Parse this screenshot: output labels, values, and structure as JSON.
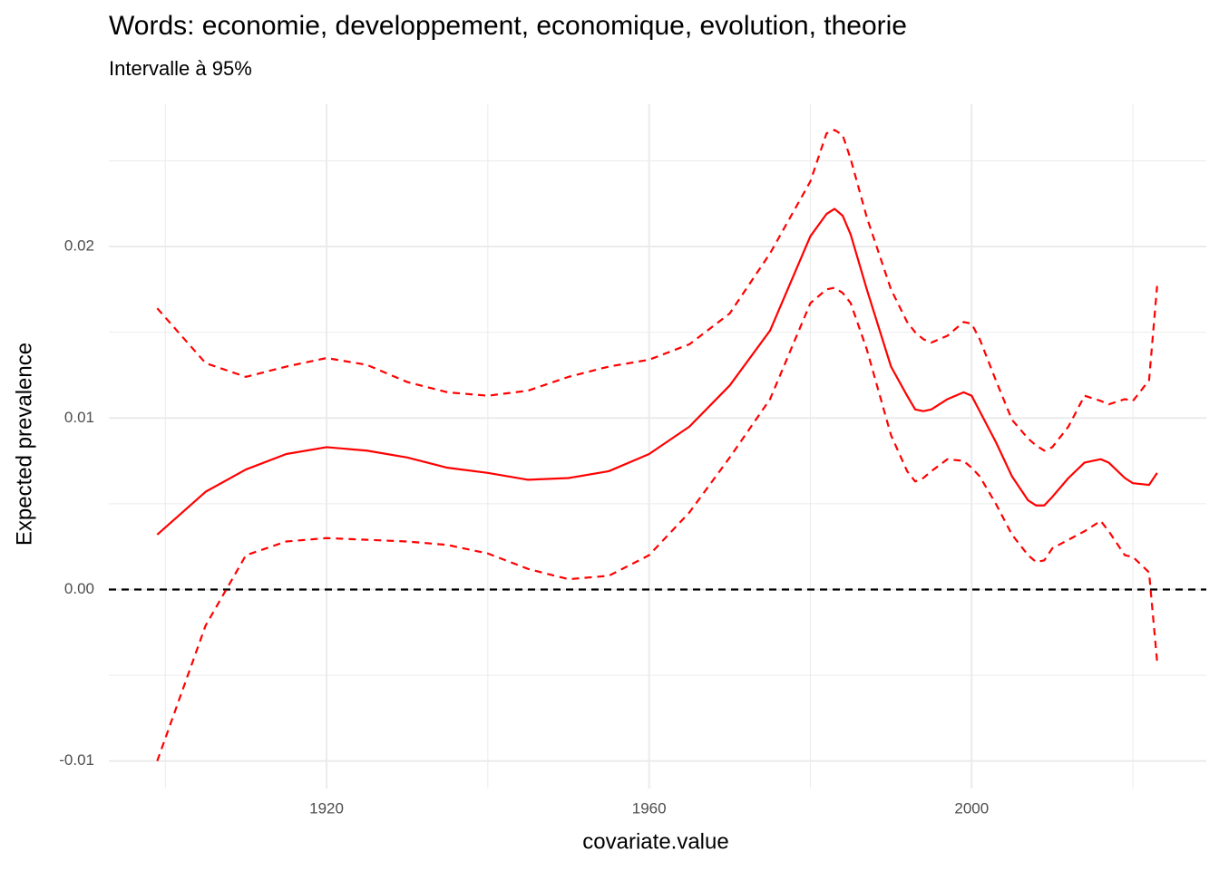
{
  "chart_data": {
    "type": "line",
    "title": "Words: economie, developpement, economique, evolution, theorie",
    "subtitle": "Intervalle à 95%",
    "x_label": "covariate.value",
    "y_label": "Expected prevalence",
    "x": [
      1899,
      1905,
      1910,
      1915,
      1920,
      1925,
      1930,
      1935,
      1940,
      1945,
      1950,
      1955,
      1960,
      1965,
      1970,
      1975,
      1980,
      1982,
      1983,
      1984,
      1985,
      1987,
      1990,
      1992,
      1993,
      1994,
      1995,
      1997,
      1999,
      2000,
      2001,
      2003,
      2005,
      2007,
      2008,
      2009,
      2010,
      2012,
      2014,
      2016,
      2017,
      2019,
      2020,
      2022,
      2023
    ],
    "series": [
      {
        "color": "#ff0000",
        "dashed": false,
        "values": [
          0.0032,
          0.0057,
          0.007,
          0.0079,
          0.0083,
          0.0081,
          0.0077,
          0.0071,
          0.0068,
          0.0064,
          0.0065,
          0.0069,
          0.0079,
          0.0095,
          0.0119,
          0.0151,
          0.0206,
          0.0219,
          0.0222,
          0.0218,
          0.0207,
          0.0175,
          0.013,
          0.0113,
          0.0105,
          0.0104,
          0.0105,
          0.0111,
          0.0115,
          0.0113,
          0.0104,
          0.0086,
          0.0066,
          0.0052,
          0.0049,
          0.0049,
          0.0054,
          0.0065,
          0.0074,
          0.0076,
          0.0074,
          0.0065,
          0.0062,
          0.0061,
          0.0068
        ]
      },
      {
        "color": "#ff0000",
        "dashed": true,
        "values": [
          0.0164,
          0.0132,
          0.0124,
          0.013,
          0.0135,
          0.0131,
          0.0121,
          0.0115,
          0.0113,
          0.0116,
          0.0124,
          0.013,
          0.0134,
          0.0143,
          0.0161,
          0.0196,
          0.0238,
          0.0266,
          0.0268,
          0.0265,
          0.0251,
          0.0217,
          0.0175,
          0.0156,
          0.015,
          0.0146,
          0.0144,
          0.0148,
          0.0156,
          0.0155,
          0.0146,
          0.0122,
          0.0099,
          0.0088,
          0.0084,
          0.0081,
          0.0083,
          0.0095,
          0.0113,
          0.011,
          0.0108,
          0.0111,
          0.011,
          0.0122,
          0.0177
        ]
      },
      {
        "color": "#ff0000",
        "dashed": true,
        "values": [
          -0.01,
          -0.0021,
          0.002,
          0.0028,
          0.003,
          0.0029,
          0.0028,
          0.0026,
          0.0021,
          0.0012,
          0.0006,
          0.0008,
          0.002,
          0.0045,
          0.0077,
          0.0111,
          0.0167,
          0.0175,
          0.0176,
          0.0173,
          0.0167,
          0.014,
          0.009,
          0.0069,
          0.0063,
          0.0065,
          0.0069,
          0.0076,
          0.0075,
          0.0071,
          0.0066,
          0.005,
          0.0032,
          0.002,
          0.0016,
          0.0017,
          0.0024,
          0.0029,
          0.0034,
          0.004,
          0.0034,
          0.002,
          0.0019,
          0.001,
          -0.0042
        ]
      }
    ],
    "reference_line": {
      "y": 0,
      "color": "#000000",
      "dashed": true
    },
    "xlim": [
      1893,
      2029.1
    ],
    "ylim": [
      -0.0116,
      0.0283
    ],
    "xticks": [
      1920,
      1960,
      2000
    ],
    "xminor": [
      1900,
      1940,
      1980,
      2020
    ],
    "yticks": [
      -0.01,
      {
        "value": 0,
        "label": "0.00"
      },
      0.01,
      0.02
    ],
    "yminor": [
      -0.005,
      0.005,
      0.015,
      0.025
    ],
    "grid": true
  }
}
